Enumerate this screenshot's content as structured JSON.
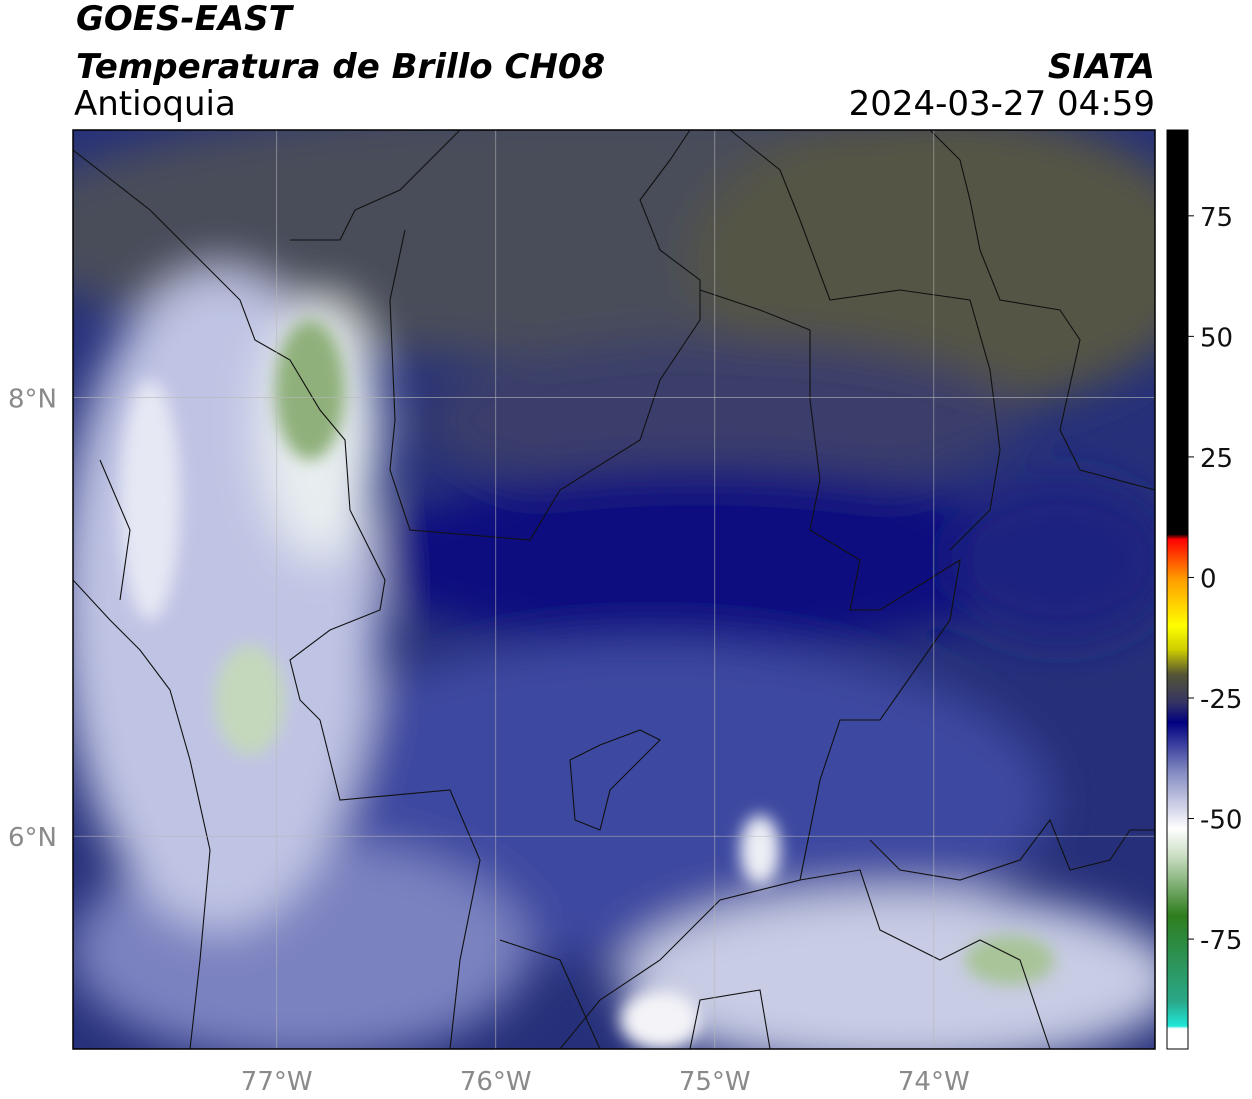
{
  "header": {
    "title": "GOES-EAST",
    "subtitle": "Temperatura de Brillo CH08",
    "region": "Antioquia",
    "source": "SIATA",
    "datetime": "2024-03-27 04:59"
  },
  "map": {
    "xlim": [
      -77.93,
      -72.99
    ],
    "ylim": [
      5.03,
      9.22
    ],
    "xticks": [
      {
        "value": -77,
        "label": "77°W"
      },
      {
        "value": -76,
        "label": "76°W"
      },
      {
        "value": -75,
        "label": "75°W"
      },
      {
        "value": -74,
        "label": "74°W"
      }
    ],
    "yticks": [
      {
        "value": 8,
        "label": "8°N"
      },
      {
        "value": 6,
        "label": "6°N"
      }
    ],
    "grid": true,
    "colorbar": {
      "clim": [
        -97.8,
        92.8
      ],
      "ticks": [
        75,
        50,
        25,
        0,
        -25,
        -50,
        -75
      ],
      "stops": [
        {
          "value": -97.8,
          "color": "#ffffff"
        },
        {
          "value": -93.5,
          "color": "#ffffff"
        },
        {
          "value": -93,
          "color": "#20e8d8"
        },
        {
          "value": -88,
          "color": "#2aa88a"
        },
        {
          "value": -70,
          "color": "#2e7d1e"
        },
        {
          "value": -58,
          "color": "#c8dcc0"
        },
        {
          "value": -52,
          "color": "#ffffff"
        },
        {
          "value": -40,
          "color": "#8088c0"
        },
        {
          "value": -30,
          "color": "#000080"
        },
        {
          "value": -26,
          "color": "#333366"
        },
        {
          "value": -20,
          "color": "#555533"
        },
        {
          "value": -15,
          "color": "#cccc00"
        },
        {
          "value": -10,
          "color": "#ffff00"
        },
        {
          "value": 0,
          "color": "#ff9900"
        },
        {
          "value": 8,
          "color": "#ff0000"
        },
        {
          "value": 9,
          "color": "#000000"
        },
        {
          "value": 92.8,
          "color": "#000000"
        }
      ]
    }
  }
}
